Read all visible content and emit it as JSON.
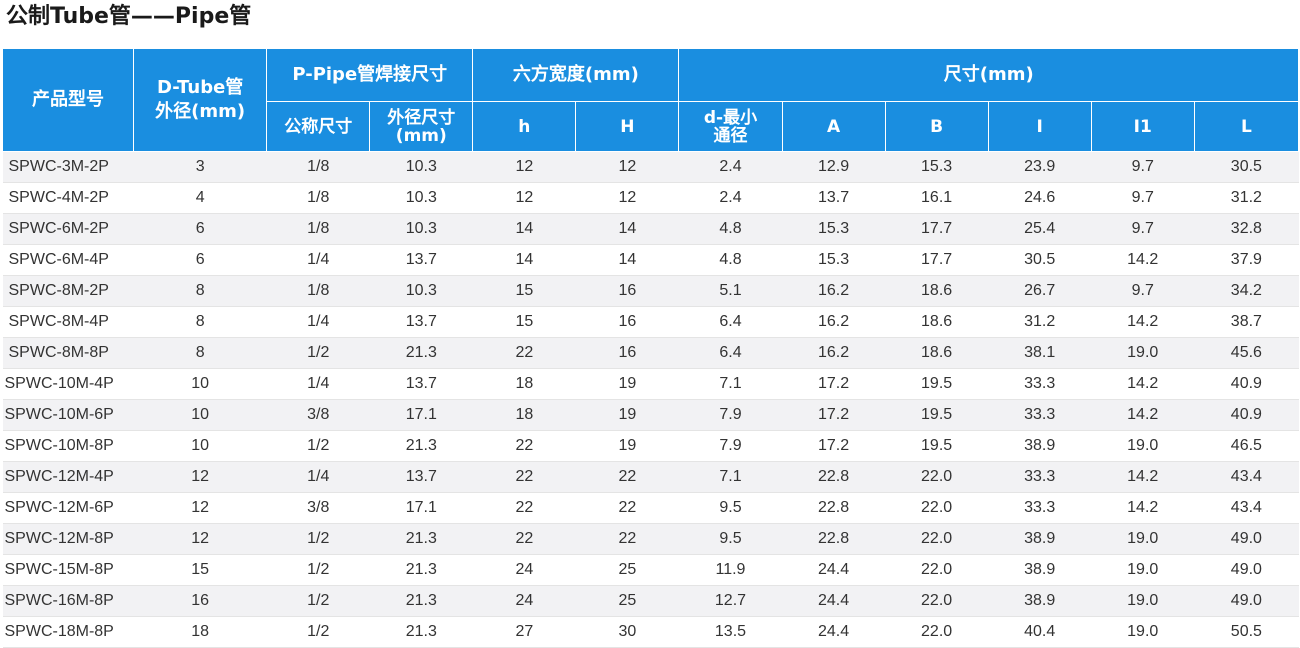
{
  "title": "公制Tube管——Pipe管",
  "header": {
    "model": "产品型号",
    "tube_line1": "D-Tube管",
    "tube_line2": "外径(mm)",
    "pipe_group": "P-Pipe管焊接尺寸",
    "nominal": "公称尺寸",
    "outer_line1": "外径尺寸",
    "outer_line2": "(mm)",
    "hex_group": "六方宽度(mm)",
    "h_small": "h",
    "h_big": "H",
    "dim_group": "尺寸(mm)",
    "d_line1": "d-最小",
    "d_line2": "通径",
    "A": "A",
    "B": "B",
    "I": "I",
    "I1": "I1",
    "L": "L"
  },
  "rows": [
    [
      "SPWC-3M-2P",
      "3",
      "1/8",
      "10.3",
      "12",
      "12",
      "2.4",
      "12.9",
      "15.3",
      "23.9",
      "9.7",
      "30.5"
    ],
    [
      "SPWC-4M-2P",
      "4",
      "1/8",
      "10.3",
      "12",
      "12",
      "2.4",
      "13.7",
      "16.1",
      "24.6",
      "9.7",
      "31.2"
    ],
    [
      "SPWC-6M-2P",
      "6",
      "1/8",
      "10.3",
      "14",
      "14",
      "4.8",
      "15.3",
      "17.7",
      "25.4",
      "9.7",
      "32.8"
    ],
    [
      "SPWC-6M-4P",
      "6",
      "1/4",
      "13.7",
      "14",
      "14",
      "4.8",
      "15.3",
      "17.7",
      "30.5",
      "14.2",
      "37.9"
    ],
    [
      "SPWC-8M-2P",
      "8",
      "1/8",
      "10.3",
      "15",
      "16",
      "5.1",
      "16.2",
      "18.6",
      "26.7",
      "9.7",
      "34.2"
    ],
    [
      "SPWC-8M-4P",
      "8",
      "1/4",
      "13.7",
      "15",
      "16",
      "6.4",
      "16.2",
      "18.6",
      "31.2",
      "14.2",
      "38.7"
    ],
    [
      "SPWC-8M-8P",
      "8",
      "1/2",
      "21.3",
      "22",
      "16",
      "6.4",
      "16.2",
      "18.6",
      "38.1",
      "19.0",
      "45.6"
    ],
    [
      "SPWC-10M-4P",
      "10",
      "1/4",
      "13.7",
      "18",
      "19",
      "7.1",
      "17.2",
      "19.5",
      "33.3",
      "14.2",
      "40.9"
    ],
    [
      "SPWC-10M-6P",
      "10",
      "3/8",
      "17.1",
      "18",
      "19",
      "7.9",
      "17.2",
      "19.5",
      "33.3",
      "14.2",
      "40.9"
    ],
    [
      "SPWC-10M-8P",
      "10",
      "1/2",
      "21.3",
      "22",
      "19",
      "7.9",
      "17.2",
      "19.5",
      "38.9",
      "19.0",
      "46.5"
    ],
    [
      "SPWC-12M-4P",
      "12",
      "1/4",
      "13.7",
      "22",
      "22",
      "7.1",
      "22.8",
      "22.0",
      "33.3",
      "14.2",
      "43.4"
    ],
    [
      "SPWC-12M-6P",
      "12",
      "3/8",
      "17.1",
      "22",
      "22",
      "9.5",
      "22.8",
      "22.0",
      "33.3",
      "14.2",
      "43.4"
    ],
    [
      "SPWC-12M-8P",
      "12",
      "1/2",
      "21.3",
      "22",
      "22",
      "9.5",
      "22.8",
      "22.0",
      "38.9",
      "19.0",
      "49.0"
    ],
    [
      "SPWC-15M-8P",
      "15",
      "1/2",
      "21.3",
      "24",
      "25",
      "11.9",
      "24.4",
      "22.0",
      "38.9",
      "19.0",
      "49.0"
    ],
    [
      "SPWC-16M-8P",
      "16",
      "1/2",
      "21.3",
      "24",
      "25",
      "12.7",
      "24.4",
      "22.0",
      "38.9",
      "19.0",
      "49.0"
    ],
    [
      "SPWC-18M-8P",
      "18",
      "1/2",
      "21.3",
      "27",
      "30",
      "13.5",
      "24.4",
      "22.0",
      "40.4",
      "19.0",
      "50.5"
    ]
  ],
  "colors": {
    "header_bg": "#1a8ee0",
    "header_text": "#ffffff",
    "row_alt": "#f2f2f4",
    "text": "#333333"
  }
}
